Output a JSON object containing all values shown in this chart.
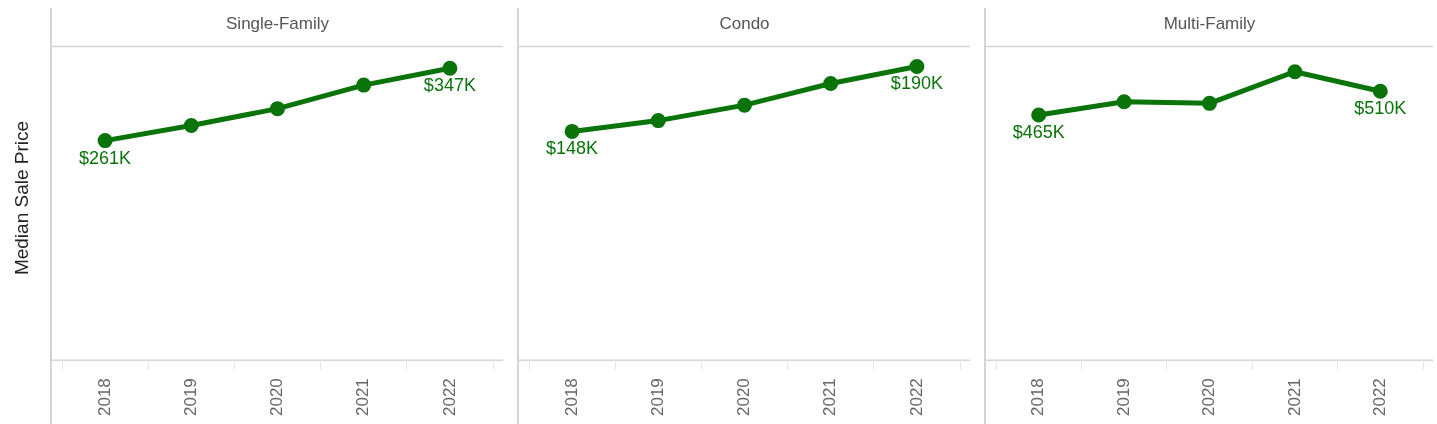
{
  "chart_data": [
    {
      "type": "line",
      "title": "Single-Family",
      "ylabel": "Median Sale Price",
      "categories": [
        "2018",
        "2019",
        "2020",
        "2021",
        "2022"
      ],
      "ylim": [
        0,
        373
      ],
      "tick_labels": "x",
      "grid": false,
      "marker": "circle",
      "series": [
        {
          "color": "#0a730a",
          "values": [
            261,
            279,
            299,
            327,
            347
          ],
          "value_labels": [
            "$261K",
            null,
            null,
            null,
            "$347K"
          ]
        }
      ]
    },
    {
      "type": "line",
      "title": "Condo",
      "categories": [
        "2018",
        "2019",
        "2020",
        "2021",
        "2022"
      ],
      "ylim": [
        0,
        203
      ],
      "tick_labels": "x",
      "grid": false,
      "marker": "circle",
      "series": [
        {
          "color": "#0a730a",
          "values": [
            148,
            155,
            165,
            179,
            190
          ],
          "value_labels": [
            "$148K",
            null,
            null,
            null,
            "$190K"
          ]
        }
      ]
    },
    {
      "type": "line",
      "title": "Multi-Family",
      "categories": [
        "2018",
        "2019",
        "2020",
        "2021",
        "2022"
      ],
      "ylim": [
        0,
        595
      ],
      "tick_labels": "x",
      "grid": false,
      "marker": "circle",
      "series": [
        {
          "color": "#0a730a",
          "values": [
            465,
            490,
            487,
            547,
            510
          ],
          "value_labels": [
            "$465K",
            null,
            null,
            null,
            "$510K"
          ]
        }
      ]
    }
  ]
}
